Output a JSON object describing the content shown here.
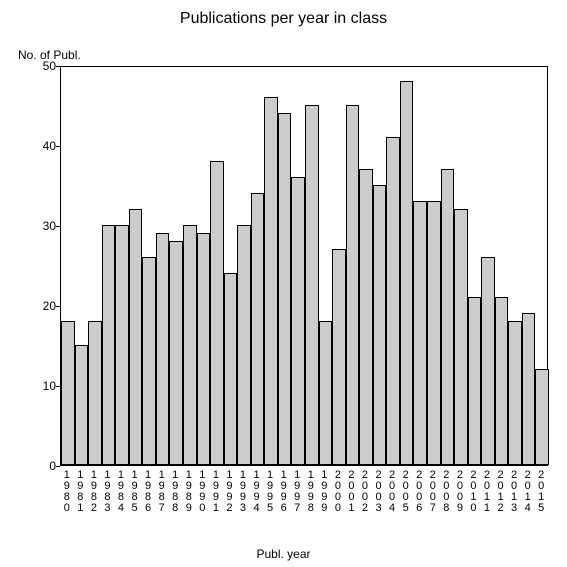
{
  "chart": {
    "type": "bar",
    "title": "Publications per year in class",
    "title_fontsize": 16,
    "y_axis_label": "No. of Publ.",
    "x_axis_label": "Publ. year",
    "label_fontsize": 12,
    "background_color": "#ffffff",
    "bar_fill": "#cccccc",
    "bar_border": "#000000",
    "axis_color": "#000000",
    "ylim": [
      0,
      50
    ],
    "yticks": [
      0,
      10,
      20,
      30,
      40,
      50
    ],
    "bar_width": 1.0,
    "categories": [
      "1980",
      "1981",
      "1982",
      "1983",
      "1984",
      "1985",
      "1986",
      "1987",
      "1988",
      "1989",
      "1990",
      "1991",
      "1992",
      "1993",
      "1994",
      "1995",
      "1996",
      "1997",
      "1998",
      "1999",
      "2000",
      "2001",
      "2002",
      "2003",
      "2004",
      "2005",
      "2006",
      "2007",
      "2008",
      "2009",
      "2010",
      "2011",
      "2012",
      "2013",
      "2014",
      "2015"
    ],
    "values": [
      18,
      15,
      18,
      30,
      30,
      32,
      26,
      29,
      28,
      30,
      29,
      38,
      24,
      30,
      34,
      46,
      44,
      36,
      45,
      18,
      27,
      45,
      37,
      35,
      41,
      48,
      33,
      33,
      37,
      32,
      21,
      26,
      21,
      18,
      19,
      12
    ]
  }
}
